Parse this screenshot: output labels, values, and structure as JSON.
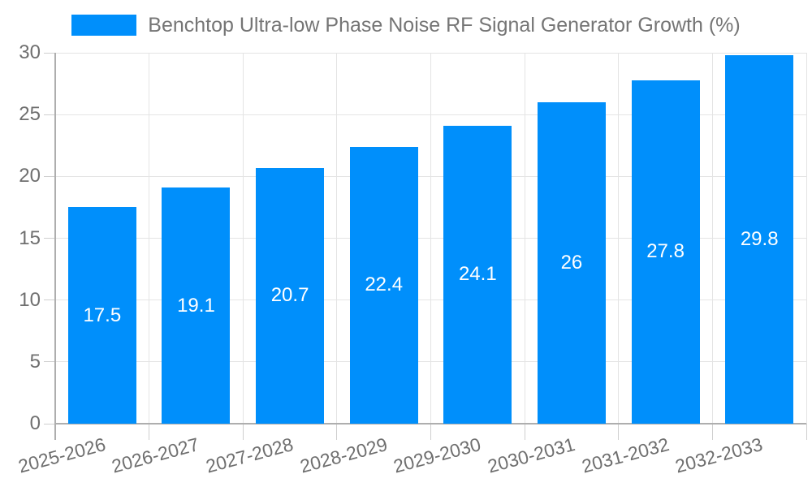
{
  "chart_data": {
    "type": "bar",
    "title": "Benchtop Ultra-low Phase Noise RF Signal Generator Growth (%)",
    "categories": [
      "2025-2026",
      "2026-2027",
      "2027-2028",
      "2028-2029",
      "2029-2030",
      "2030-2031",
      "2031-2032",
      "2032-2033"
    ],
    "values": [
      17.5,
      19.1,
      20.7,
      22.4,
      24.1,
      26,
      27.8,
      29.8
    ],
    "xlabel": "",
    "ylabel": "",
    "ylim": [
      0,
      30
    ],
    "yticks": [
      0,
      5,
      10,
      15,
      20,
      25,
      30
    ],
    "grid": true,
    "legend_position": "top",
    "bar_color": "#008FFB",
    "value_label_color": "#ffffff",
    "axis_label_color": "#6f6f6f",
    "legend_text_color": "#757575"
  }
}
